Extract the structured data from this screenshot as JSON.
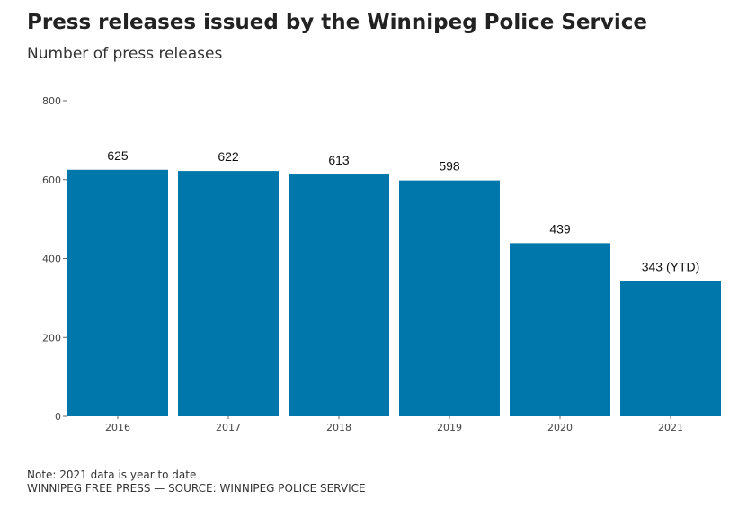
{
  "title": "Press releases issued by the Winnipeg Police Service",
  "subtitle": "Number of press releases",
  "note": "Note: 2021 data is year to date",
  "source": "WINNIPEG FREE PRESS — SOURCE: WINNIPEG POLICE SERVICE",
  "chart_data": {
    "type": "bar",
    "title": "Press releases issued by the Winnipeg Police Service",
    "ylabel": "Number of press releases",
    "xlabel": "",
    "categories": [
      "2016",
      "2017",
      "2018",
      "2019",
      "2020",
      "2021"
    ],
    "values": [
      625,
      622,
      613,
      598,
      439,
      343
    ],
    "data_labels": [
      "625",
      "622",
      "613",
      "598",
      "439",
      "343 (YTD)"
    ],
    "yticks": [
      0,
      200,
      400,
      600,
      800
    ],
    "ylim": [
      0,
      800
    ],
    "grid": false,
    "bar_color": "#0077aa"
  }
}
